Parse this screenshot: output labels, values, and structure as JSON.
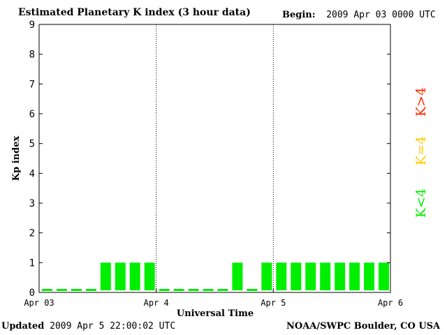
{
  "header": {
    "title": "Estimated Planetary K index (3 hour data)",
    "begin_label": "Begin:",
    "begin_value": "2009 Apr 03 0000 UTC"
  },
  "footer": {
    "updated_label": "Updated",
    "updated_value": "2009 Apr  5 22:00:02 UTC",
    "source": "NOAA/SWPC Boulder, CO USA"
  },
  "legend": [
    {
      "label": "K>4",
      "color": "#ff2a00"
    },
    {
      "label": "K=4",
      "color": "#ffcc00"
    },
    {
      "label": "K<4",
      "color": "#00ee00"
    }
  ],
  "chart_data": {
    "type": "bar",
    "title": "Estimated Planetary K index (3 hour data)",
    "xlabel": "Universal Time",
    "ylabel": "Kp index",
    "ylim": [
      0,
      9
    ],
    "yticks": [
      "0",
      "1",
      "2",
      "3",
      "4",
      "5",
      "6",
      "7",
      "8",
      "9"
    ],
    "xticks": [
      "Apr 03",
      "Apr 4",
      "Apr 5",
      "Apr 6"
    ],
    "grid": "vertical day separators (dotted)",
    "categories": [
      "Apr 03 00",
      "Apr 03 03",
      "Apr 03 06",
      "Apr 03 09",
      "Apr 03 12",
      "Apr 03 15",
      "Apr 03 18",
      "Apr 03 21",
      "Apr 04 00",
      "Apr 04 03",
      "Apr 04 06",
      "Apr 04 09",
      "Apr 04 12",
      "Apr 04 15",
      "Apr 04 18",
      "Apr 04 21",
      "Apr 05 00",
      "Apr 05 03",
      "Apr 05 06",
      "Apr 05 09",
      "Apr 05 12",
      "Apr 05 15",
      "Apr 05 18",
      "Apr 05 21"
    ],
    "values": [
      0,
      0,
      0,
      0,
      1,
      1,
      1,
      1,
      0,
      0,
      0,
      0,
      0,
      1,
      0,
      1,
      1,
      1,
      1,
      1,
      1,
      1,
      1,
      1
    ],
    "bar_color": "#00ee00"
  }
}
